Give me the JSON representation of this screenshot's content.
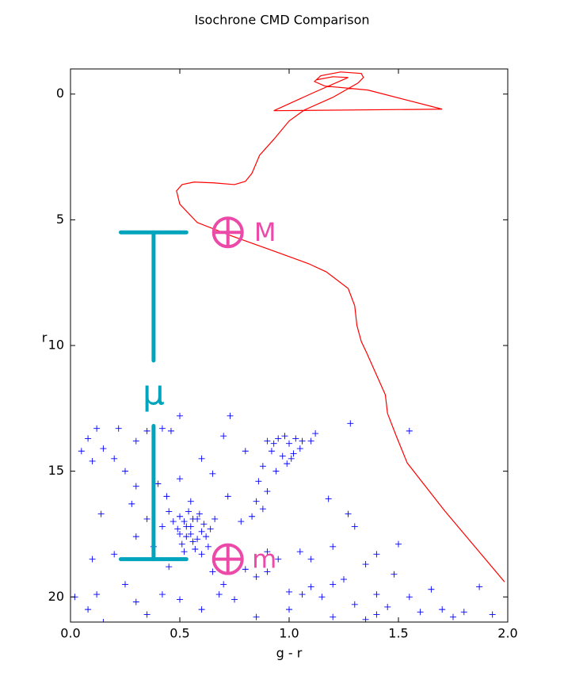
{
  "chart_data": {
    "type": "scatter",
    "title": "Isochrone CMD Comparison",
    "x_label": "g - r",
    "y_label": "r",
    "xlim": [
      0,
      2
    ],
    "ylim": [
      21,
      -1
    ],
    "y_inverted": true,
    "xticks": [
      {
        "value": 0,
        "label": "0.0"
      },
      {
        "value": 0.5,
        "label": "0.5"
      },
      {
        "value": 1,
        "label": "1.0"
      },
      {
        "value": 1.5,
        "label": "1.5"
      },
      {
        "value": 2,
        "label": "2.0"
      }
    ],
    "yticks": [
      0,
      5,
      10,
      15,
      20
    ],
    "grid": false,
    "series": [
      {
        "kind": "line",
        "color": "#ff0000",
        "x": [
          1.985,
          1.71,
          1.54,
          1.49,
          1.45,
          1.44,
          1.355,
          1.33,
          1.31,
          1.3,
          1.27,
          1.17,
          1.09,
          0.91,
          0.73,
          0.58,
          0.5,
          0.485,
          0.51,
          0.565,
          0.655,
          0.75,
          0.8,
          0.83,
          0.865,
          0.93,
          1.0,
          1.07,
          1.2,
          1.315,
          1.34,
          1.33,
          1.235,
          1.145,
          1.116,
          1.163,
          1.36,
          1.7,
          0.93,
          1.12,
          1.27,
          1.2,
          1.127
        ],
        "y": [
          19.4,
          16.56,
          14.67,
          13.6,
          12.7,
          11.96,
          10.3,
          9.84,
          9.2,
          8.42,
          7.73,
          7.07,
          6.75,
          6.18,
          5.62,
          5.11,
          4.38,
          3.85,
          3.6,
          3.5,
          3.53,
          3.6,
          3.47,
          3.15,
          2.43,
          1.8,
          1.07,
          0.63,
          0.13,
          -0.44,
          -0.66,
          -0.82,
          -0.88,
          -0.73,
          -0.5,
          -0.32,
          -0.16,
          0.6,
          0.66,
          -0.09,
          -0.66,
          -0.69,
          -0.57
        ]
      },
      {
        "kind": "points",
        "color": "#0000ff",
        "x": [
          0.5,
          0.52,
          0.55,
          0.58,
          0.6,
          0.53,
          0.56,
          0.62,
          0.49,
          0.51,
          0.57,
          0.63,
          0.54,
          0.59,
          0.61,
          0.5,
          0.55,
          0.58,
          0.64,
          0.52,
          0.47,
          0.66,
          0.6,
          0.56,
          0.53,
          0.9,
          0.95,
          0.98,
          1.0,
          1.03,
          0.92,
          0.97,
          1.01,
          0.88,
          0.94,
          0.86,
          0.9,
          0.85,
          0.88,
          0.93,
          1.05,
          0.99,
          0.83,
          1.02,
          1.06,
          1.1,
          1.12,
          0.05,
          0.08,
          0.12,
          0.15,
          0.2,
          0.22,
          0.3,
          0.35,
          0.42,
          0.46,
          0.5,
          0.1,
          0.25,
          0.3,
          0.4,
          0.44,
          0.28,
          0.14,
          0.35,
          0.42,
          0.3,
          0.38,
          0.2,
          0.1,
          0.45,
          0.25,
          0.12,
          0.02,
          0.08,
          0.3,
          0.42,
          0.5,
          0.35,
          0.15,
          0.65,
          0.7,
          0.75,
          0.8,
          0.85,
          0.9,
          0.95,
          1.0,
          1.05,
          1.1,
          1.15,
          1.2,
          1.25,
          1.3,
          1.35,
          1.4,
          1.45,
          1.5,
          1.55,
          1.6,
          1.65,
          1.7,
          1.75,
          1.8,
          1.87,
          1.93,
          1.0,
          1.2,
          1.3,
          1.4,
          0.85,
          0.6,
          1.1,
          0.9,
          1.27,
          1.28,
          1.18,
          1.55,
          0.73,
          0.68,
          0.78,
          0.72,
          0.65,
          0.6,
          0.7,
          0.8,
          0.5,
          0.55,
          0.45,
          1.4,
          1.48,
          1.2,
          1.06,
          1.35
        ],
        "y": [
          16.8,
          17.0,
          17.2,
          16.9,
          17.4,
          17.6,
          17.8,
          17.6,
          17.3,
          17.9,
          18.1,
          18.0,
          16.6,
          16.7,
          17.1,
          17.5,
          17.5,
          17.7,
          17.3,
          18.2,
          17.0,
          16.9,
          18.3,
          16.9,
          17.2,
          13.8,
          13.7,
          13.6,
          13.9,
          13.7,
          14.2,
          14.4,
          14.5,
          14.8,
          15.0,
          15.4,
          15.8,
          16.2,
          16.5,
          13.9,
          14.1,
          14.7,
          16.8,
          14.3,
          13.8,
          13.8,
          13.5,
          14.2,
          13.7,
          13.3,
          14.1,
          14.5,
          13.3,
          13.8,
          13.4,
          13.3,
          13.4,
          12.8,
          14.6,
          15.0,
          15.6,
          15.5,
          16.0,
          16.3,
          16.7,
          16.9,
          17.2,
          17.6,
          18.0,
          18.3,
          18.5,
          18.8,
          19.5,
          19.9,
          20.0,
          20.5,
          20.2,
          19.9,
          20.1,
          20.7,
          21.0,
          19.0,
          19.5,
          20.1,
          18.9,
          19.2,
          19.0,
          18.5,
          19.8,
          18.2,
          19.6,
          20.0,
          18.0,
          19.3,
          17.2,
          18.7,
          19.9,
          20.4,
          17.9,
          20.0,
          20.6,
          19.7,
          20.5,
          20.8,
          20.6,
          19.6,
          20.7,
          20.5,
          20.8,
          20.3,
          20.7,
          20.8,
          20.5,
          18.5,
          18.2,
          16.7,
          13.1,
          16.1,
          13.4,
          12.8,
          19.9,
          17.0,
          16.0,
          15.1,
          14.5,
          13.6,
          14.2,
          15.3,
          16.2,
          16.6,
          18.3,
          19.1,
          19.5,
          19.9,
          20.9
        ]
      }
    ],
    "bar_color": "#00a5bd",
    "bar_segments": [
      {
        "x": [
          0.23,
          0.53
        ],
        "y": [
          5.5,
          5.5
        ]
      },
      {
        "x": [
          0.38,
          0.38
        ],
        "y": [
          5.5,
          10.6
        ]
      },
      {
        "x": [
          0.38,
          0.38
        ],
        "y": [
          13.2,
          18.5
        ]
      },
      {
        "x": [
          0.23,
          0.53
        ],
        "y": [
          18.5,
          18.5
        ]
      }
    ],
    "marker_color": "#ec4aa8",
    "markers": [
      {
        "x": 0.72,
        "y": 5.5
      },
      {
        "x": 0.72,
        "y": 18.5
      }
    ],
    "annotations": [
      {
        "text": "M",
        "x": 0.84,
        "y": 5.5,
        "color": "#ec4aa8"
      },
      {
        "text": "m",
        "x": 0.83,
        "y": 18.5,
        "color": "#ec4aa8"
      },
      {
        "text": "μ",
        "x": 0.38,
        "y": 11.9,
        "color": "#00a5bd"
      }
    ]
  }
}
